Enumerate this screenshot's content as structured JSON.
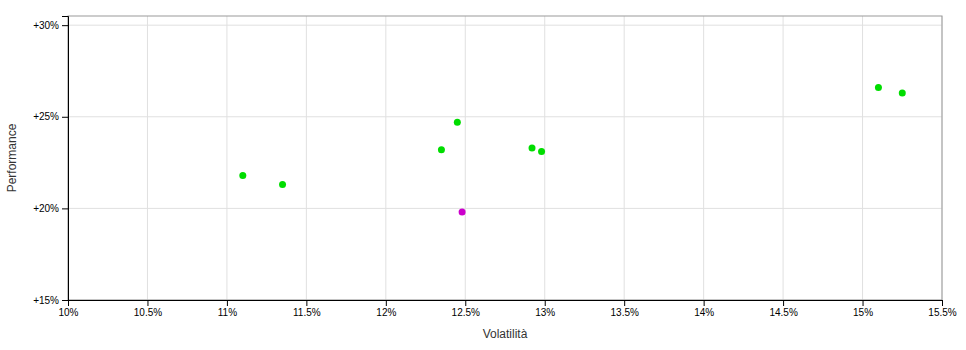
{
  "chart_data": {
    "type": "scatter",
    "xlabel": "Volatilità",
    "ylabel": "Performance",
    "xlim": [
      0.1,
      0.155
    ],
    "ylim": [
      0.15,
      0.305
    ],
    "xticks": [
      {
        "value": 0.1,
        "label": "10%"
      },
      {
        "value": 0.105,
        "label": "10.5%"
      },
      {
        "value": 0.11,
        "label": "11%"
      },
      {
        "value": 0.115,
        "label": "11.5%"
      },
      {
        "value": 0.12,
        "label": "12%"
      },
      {
        "value": 0.125,
        "label": "12.5%"
      },
      {
        "value": 0.13,
        "label": "13%"
      },
      {
        "value": 0.135,
        "label": "13.5%"
      },
      {
        "value": 0.14,
        "label": "14%"
      },
      {
        "value": 0.145,
        "label": "14.5%"
      },
      {
        "value": 0.15,
        "label": "15%"
      },
      {
        "value": 0.155,
        "label": "15.5%"
      }
    ],
    "yticks": [
      {
        "value": 0.15,
        "label": "+15%"
      },
      {
        "value": 0.2,
        "label": "+20%"
      },
      {
        "value": 0.25,
        "label": "+25%"
      },
      {
        "value": 0.3,
        "label": "+30%"
      }
    ],
    "grid": true,
    "series": [
      {
        "color": "#00dd00",
        "x": [
          0.111,
          0.1135,
          0.1245,
          0.1235,
          0.1292,
          0.1298,
          0.151,
          0.1525
        ],
        "values": [
          0.218,
          0.213,
          0.247,
          0.232,
          0.233,
          0.231,
          0.266,
          0.263
        ]
      },
      {
        "color": "#cc00cc",
        "x": [
          0.1248
        ],
        "values": [
          0.198
        ]
      }
    ]
  }
}
